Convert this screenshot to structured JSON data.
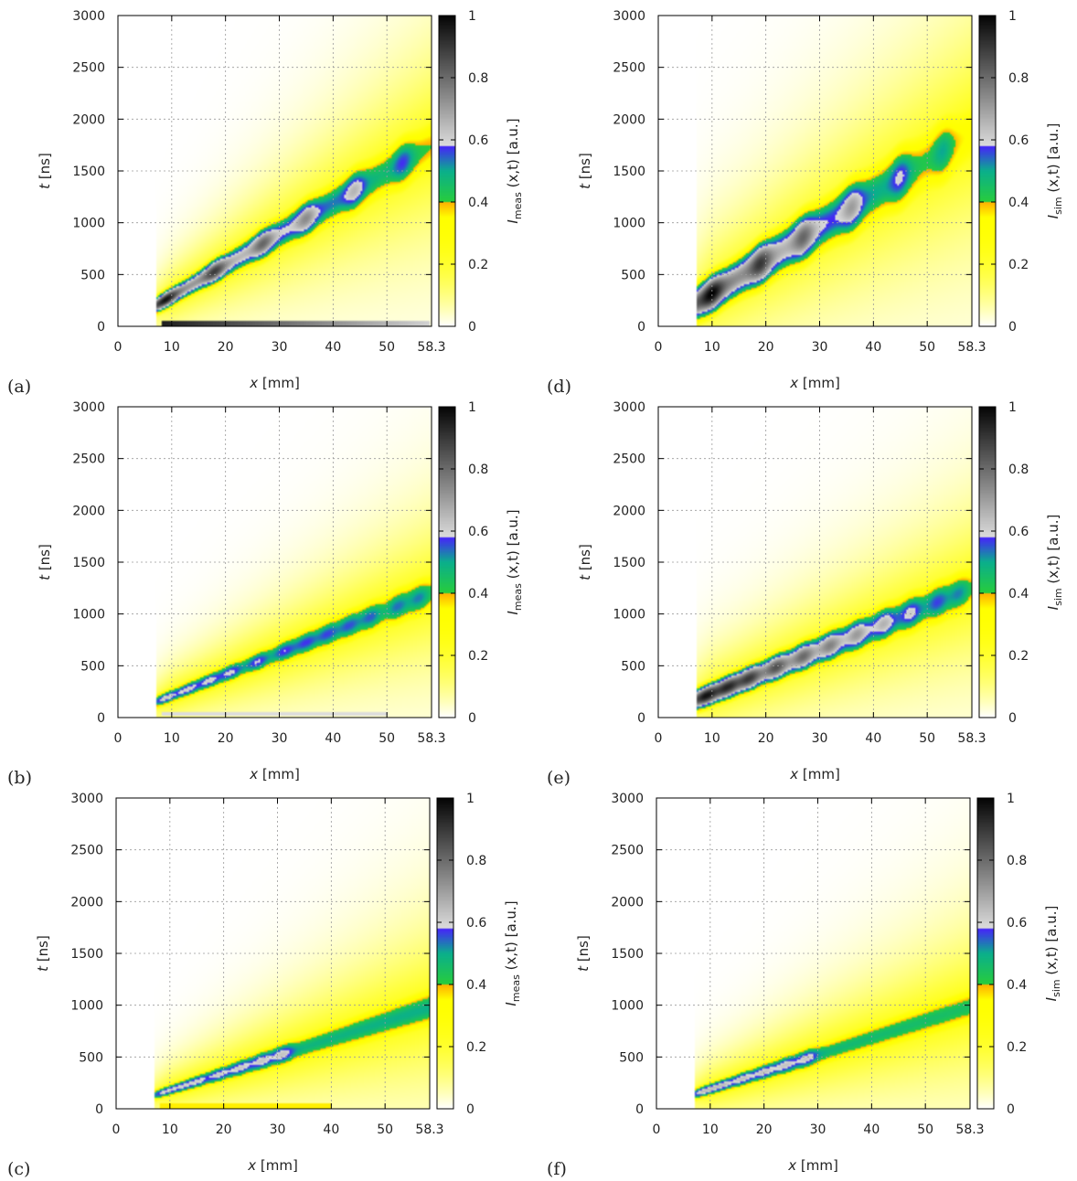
{
  "figure": {
    "panel_labels": [
      "(a)",
      "(b)",
      "(c)",
      "(d)",
      "(e)",
      "(f)"
    ]
  },
  "chart_data": [
    {
      "panel": "(a)",
      "type": "heatmap",
      "xlabel_var": "x",
      "xlabel_unit": "[mm]",
      "ylabel_var": "t",
      "ylabel_unit": "[ns]",
      "colorbar_label_var": "I",
      "colorbar_label_sub": "meas",
      "colorbar_label_rest": " (x,t) [a.u.]",
      "xlim": [
        0,
        58.3
      ],
      "ylim": [
        0,
        3000
      ],
      "zlim": [
        0,
        1
      ],
      "x_ticks": [
        "0",
        "10",
        "20",
        "30",
        "40",
        "50",
        "58.3"
      ],
      "y_ticks": [
        "0",
        "500",
        "1000",
        "1500",
        "2000",
        "2500",
        "3000"
      ],
      "colorbar_ticks": [
        "0",
        "0.2",
        "0.4",
        "0.6",
        "0.8",
        "1"
      ],
      "grid": true,
      "band": {
        "x_start": 7,
        "t_at_start": 200,
        "slope_ns_per_mm": 30.0,
        "width_start": 60,
        "width_growth": 3.0,
        "peak_start": 0.95,
        "peak_end": 0.5,
        "halo": 3.2
      },
      "blobs_x": [
        9,
        18,
        27,
        35,
        44,
        53
      ],
      "artifact": {
        "x_start": 8,
        "x_end": 58,
        "t": 30,
        "kind": "dark"
      }
    },
    {
      "panel": "(b)",
      "type": "heatmap",
      "xlabel_var": "x",
      "xlabel_unit": "[mm]",
      "ylabel_var": "t",
      "ylabel_unit": "[ns]",
      "colorbar_label_var": "I",
      "colorbar_label_sub": "meas",
      "colorbar_label_rest": " (x,t) [a.u.]",
      "xlim": [
        0,
        58.3
      ],
      "ylim": [
        0,
        3000
      ],
      "zlim": [
        0,
        1
      ],
      "x_ticks": [
        "0",
        "10",
        "20",
        "30",
        "40",
        "50",
        "58.3"
      ],
      "y_ticks": [
        "0",
        "500",
        "1000",
        "1500",
        "2000",
        "2500",
        "3000"
      ],
      "colorbar_ticks": [
        "0",
        "0.2",
        "0.4",
        "0.6",
        "0.8",
        "1"
      ],
      "grid": true,
      "band": {
        "x_start": 7,
        "t_at_start": 150,
        "slope_ns_per_mm": 20.5,
        "width_start": 50,
        "width_growth": 2.0,
        "peak_start": 0.6,
        "peak_end": 0.5,
        "halo": 3.5
      },
      "blobs_x": [
        9,
        13,
        17,
        21,
        26,
        31,
        35,
        39,
        43,
        47,
        52,
        56
      ],
      "artifact": {
        "x_start": 8,
        "x_end": 50,
        "t": 35,
        "kind": "light"
      }
    },
    {
      "panel": "(c)",
      "type": "heatmap",
      "xlabel_var": "x",
      "xlabel_unit": "[mm]",
      "ylabel_var": "t",
      "ylabel_unit": "[ns]",
      "colorbar_label_var": "I",
      "colorbar_label_sub": "meas",
      "colorbar_label_rest": " (x,t) [a.u.]",
      "xlim": [
        0,
        58.3
      ],
      "ylim": [
        0,
        3000
      ],
      "zlim": [
        0,
        1
      ],
      "x_ticks": [
        "0",
        "10",
        "20",
        "30",
        "40",
        "50",
        "58.3"
      ],
      "y_ticks": [
        "0",
        "500",
        "1000",
        "1500",
        "2000",
        "2500",
        "3000"
      ],
      "colorbar_ticks": [
        "0",
        "0.2",
        "0.4",
        "0.6",
        "0.8",
        "1"
      ],
      "grid": true,
      "band": {
        "x_start": 7,
        "t_at_start": 130,
        "slope_ns_per_mm": 16.5,
        "width_start": 40,
        "width_growth": 2.2,
        "peak_start": 0.58,
        "peak_end": 0.62,
        "halo": 3.8
      },
      "blobs_x": [
        9,
        12,
        15,
        19,
        23,
        27,
        31
      ],
      "artifact": {
        "x_start": 8,
        "x_end": 40,
        "t": 25,
        "kind": "yellow"
      }
    },
    {
      "panel": "(d)",
      "type": "heatmap",
      "xlabel_var": "x",
      "xlabel_unit": "[mm]",
      "ylabel_var": "t",
      "ylabel_unit": "[ns]",
      "colorbar_label_var": "I",
      "colorbar_label_sub": "sim",
      "colorbar_label_rest": " (x,t) [a.u.]",
      "xlim": [
        0,
        58.3
      ],
      "ylim": [
        0,
        3000
      ],
      "zlim": [
        0,
        1
      ],
      "x_ticks": [
        "0",
        "10",
        "20",
        "30",
        "40",
        "50",
        "58.3"
      ],
      "y_ticks": [
        "0",
        "500",
        "1000",
        "1500",
        "2000",
        "2500",
        "3000"
      ],
      "colorbar_ticks": [
        "0",
        "0.2",
        "0.4",
        "0.6",
        "0.8",
        "1"
      ],
      "grid": true,
      "band": {
        "x_start": 7,
        "t_at_start": 220,
        "slope_ns_per_mm": 32.0,
        "width_start": 130,
        "width_growth": 2.8,
        "peak_start": 1.0,
        "peak_end": 0.42,
        "halo": 3.0
      },
      "blobs_x": [
        10,
        19,
        27,
        36,
        45,
        53
      ],
      "artifact": null
    },
    {
      "panel": "(e)",
      "type": "heatmap",
      "xlabel_var": "x",
      "xlabel_unit": "[mm]",
      "ylabel_var": "t",
      "ylabel_unit": "[ns]",
      "colorbar_label_var": "I",
      "colorbar_label_sub": "sim",
      "colorbar_label_rest": " (x,t) [a.u.]",
      "xlim": [
        0,
        58.3
      ],
      "ylim": [
        0,
        3000
      ],
      "zlim": [
        0,
        1
      ],
      "x_ticks": [
        "0",
        "10",
        "20",
        "30",
        "40",
        "50",
        "58.3"
      ],
      "y_ticks": [
        "0",
        "500",
        "1000",
        "1500",
        "2000",
        "2500",
        "3000"
      ],
      "colorbar_ticks": [
        "0",
        "0.2",
        "0.4",
        "0.6",
        "0.8",
        "1"
      ],
      "grid": true,
      "band": {
        "x_start": 7,
        "t_at_start": 170,
        "slope_ns_per_mm": 21.0,
        "width_start": 80,
        "width_growth": 1.8,
        "peak_start": 0.95,
        "peak_end": 0.48,
        "halo": 3.3
      },
      "blobs_x": [
        9,
        13,
        17,
        22,
        27,
        32,
        37,
        42,
        47,
        52,
        56
      ],
      "artifact": null
    },
    {
      "panel": "(f)",
      "type": "heatmap",
      "xlabel_var": "x",
      "xlabel_unit": "[mm]",
      "ylabel_var": "t",
      "ylabel_unit": "[ns]",
      "colorbar_label_var": "I",
      "colorbar_label_sub": "sim",
      "colorbar_label_rest": " (x,t) [a.u.]",
      "xlim": [
        0,
        58.3
      ],
      "ylim": [
        0,
        3000
      ],
      "zlim": [
        0,
        1
      ],
      "x_ticks": [
        "0",
        "10",
        "20",
        "30",
        "40",
        "50",
        "58.3"
      ],
      "y_ticks": [
        "0",
        "500",
        "1000",
        "1500",
        "2000",
        "2500",
        "3000"
      ],
      "colorbar_ticks": [
        "0",
        "0.2",
        "0.4",
        "0.6",
        "0.8",
        "1"
      ],
      "grid": true,
      "band": {
        "x_start": 7,
        "t_at_start": 140,
        "slope_ns_per_mm": 16.5,
        "width_start": 45,
        "width_growth": 2.0,
        "peak_start": 0.62,
        "peak_end": 0.56,
        "halo": 3.8
      },
      "blobs_x": [
        9,
        12,
        16,
        20,
        24,
        28
      ],
      "artifact": null
    }
  ]
}
